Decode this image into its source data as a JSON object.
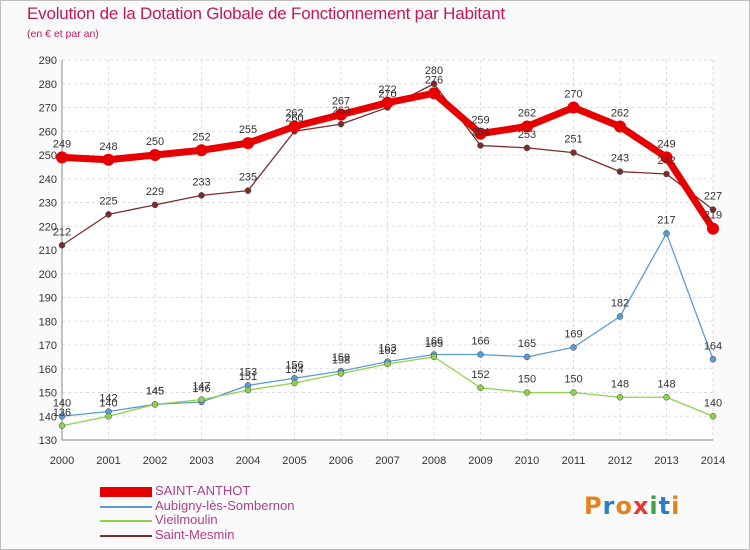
{
  "title": "Evolution de la Dotation Globale de Fonctionnement par Habitant",
  "subtitle": "(en € et par an)",
  "brand": {
    "letters": [
      "P",
      "r",
      "o",
      "x",
      "i",
      "t",
      "i"
    ],
    "colors": [
      "#e8811c",
      "#2a7fc9",
      "#e8811c",
      "#e53935",
      "#43a047",
      "#2a7fc9",
      "#e8811c"
    ]
  },
  "chart_data": {
    "type": "line",
    "title": "Evolution de la Dotation Globale de Fonctionnement par Habitant",
    "ylabel": "(en € et par an)",
    "xlabel": "",
    "ylim": [
      130,
      290
    ],
    "yticks": [
      130,
      140,
      150,
      160,
      170,
      180,
      190,
      200,
      210,
      220,
      230,
      240,
      250,
      260,
      270,
      280,
      290
    ],
    "categories": [
      "2000",
      "2001",
      "2002",
      "2003",
      "2004",
      "2005",
      "2006",
      "2007",
      "2008",
      "2009",
      "2010",
      "2011",
      "2012",
      "2013",
      "2014"
    ],
    "grid": true,
    "legend_position": "bottom-left",
    "series": [
      {
        "name": "SAINT-ANTHOT",
        "color": "#e60000",
        "width": "thick",
        "values": [
          249,
          248,
          250,
          252,
          255,
          262,
          267,
          272,
          276,
          259,
          262,
          270,
          262,
          249,
          219
        ],
        "labels": [
          "249",
          "248",
          "250",
          "252",
          "255",
          "262",
          "267",
          "272",
          "276",
          "259",
          "262",
          "270",
          "262",
          "249",
          "219"
        ]
      },
      {
        "name": "Aubigny-lès-Sombernon",
        "color": "#5b9bd5",
        "width": "thin",
        "values": [
          140,
          142,
          145,
          146,
          153,
          156,
          159,
          163,
          166,
          166,
          165,
          169,
          182,
          217,
          164
        ],
        "labels": [
          "140",
          "142",
          "145",
          "146",
          "153",
          "156",
          "159",
          "163",
          "166",
          "166",
          "165",
          "169",
          "182",
          "217",
          "164"
        ]
      },
      {
        "name": "Vieilmoulin",
        "color": "#8fd14f",
        "width": "thin",
        "values": [
          136,
          140,
          145,
          147,
          151,
          154,
          158,
          162,
          165,
          152,
          150,
          150,
          148,
          148,
          140
        ],
        "labels": [
          "136",
          "140",
          "145",
          "147",
          "151",
          "154",
          "158",
          "162",
          "165",
          "152",
          "150",
          "150",
          "148",
          "148",
          "140"
        ]
      },
      {
        "name": "Saint-Mesmin",
        "color": "#7b2c2c",
        "width": "thin",
        "values": [
          212,
          225,
          229,
          233,
          235,
          260,
          263,
          270,
          280,
          254,
          253,
          251,
          243,
          242,
          227
        ],
        "labels": [
          "212",
          "225",
          "229",
          "233",
          "235",
          "260",
          "263",
          "270",
          "280",
          "254",
          "253",
          "251",
          "243",
          "242",
          "227"
        ]
      }
    ]
  }
}
